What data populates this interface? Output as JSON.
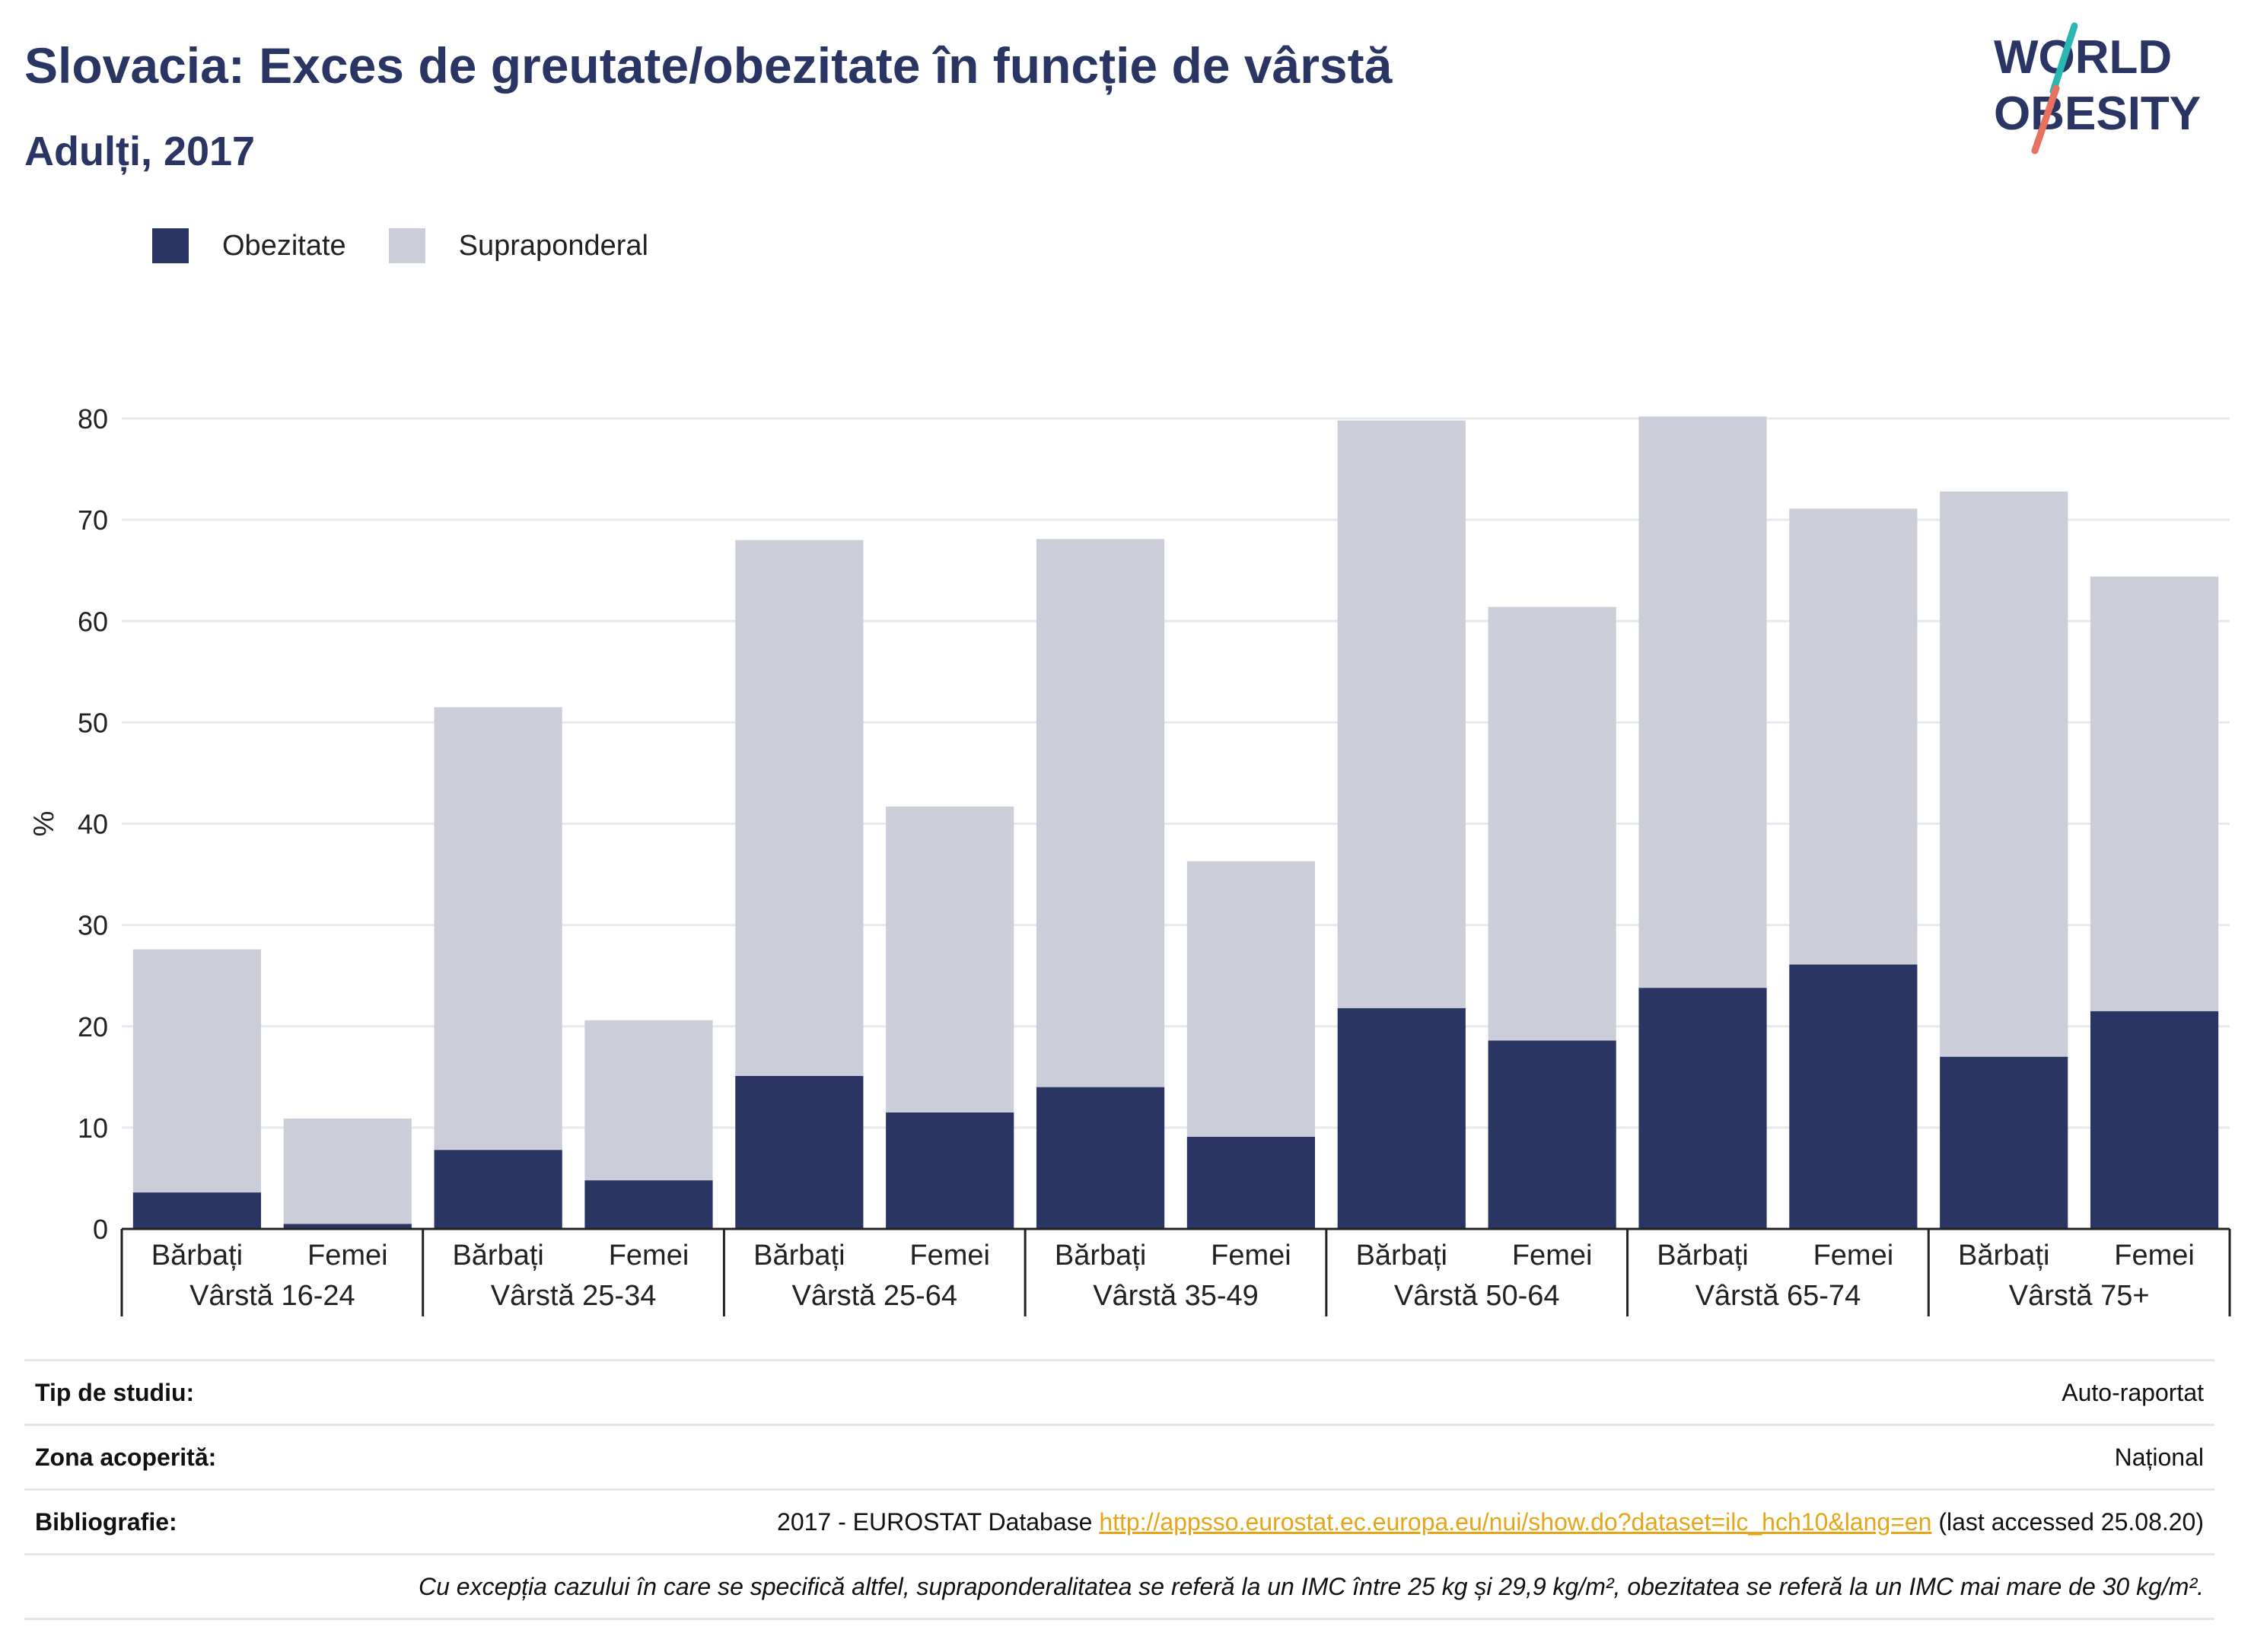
{
  "title": "Slovacia: Exces de greutate/obezitate în funcție de vârstă",
  "subtitle": "Adulți, 2017",
  "logo": {
    "line1": "WORLD",
    "line2": "OBESITY",
    "accent_colors": [
      "#2ab7b4",
      "#e8705f"
    ]
  },
  "legend": [
    {
      "label": "Obezitate",
      "color": "#2a3563"
    },
    {
      "label": "Supraponderal",
      "color": "#cbcdd9"
    }
  ],
  "chart_data": {
    "type": "bar",
    "stacked": true,
    "ylabel": "%",
    "ylim": [
      0,
      80
    ],
    "yticks": [
      0,
      10,
      20,
      30,
      40,
      50,
      60,
      70,
      80
    ],
    "grid": true,
    "groups": [
      "Vârstă 16-24",
      "Vârstă 25-34",
      "Vârstă 25-64",
      "Vârstă 35-49",
      "Vârstă 50-64",
      "Vârstă 65-74",
      "Vârstă 75+"
    ],
    "subcategories": [
      "Bărbați",
      "Femei"
    ],
    "series": [
      {
        "name": "Obezitate",
        "color": "#2a3563",
        "values": [
          3.6,
          0.5,
          7.8,
          4.8,
          15.1,
          11.5,
          14.0,
          9.1,
          21.8,
          18.6,
          23.8,
          26.1,
          17.0,
          21.5
        ]
      },
      {
        "name": "Supraponderal",
        "color": "#cbcdd9",
        "values": [
          24.0,
          10.4,
          43.7,
          15.8,
          52.9,
          30.2,
          54.1,
          27.2,
          58.0,
          42.8,
          56.4,
          45.0,
          55.8,
          42.9
        ]
      }
    ]
  },
  "info": {
    "study_type_label": "Tip de studiu:",
    "study_type_value": "Auto-raportat",
    "coverage_label": "Zona acoperită:",
    "coverage_value": "Național",
    "biblio_label": "Bibliografie:",
    "biblio_prefix": "2017 - EUROSTAT Database ",
    "biblio_link": "http://appsso.eurostat.ec.europa.eu/nui/show.do?dataset=ilc_hch10&lang=en",
    "biblio_suffix": " (last accessed 25.08.20)",
    "note": "Cu excepția cazului în care se specifică altfel, supraponderalitatea se referă la un IMC între 25 kg și 29,9 kg/m², obezitatea se referă la un IMC mai mare de 30 kg/m²."
  }
}
